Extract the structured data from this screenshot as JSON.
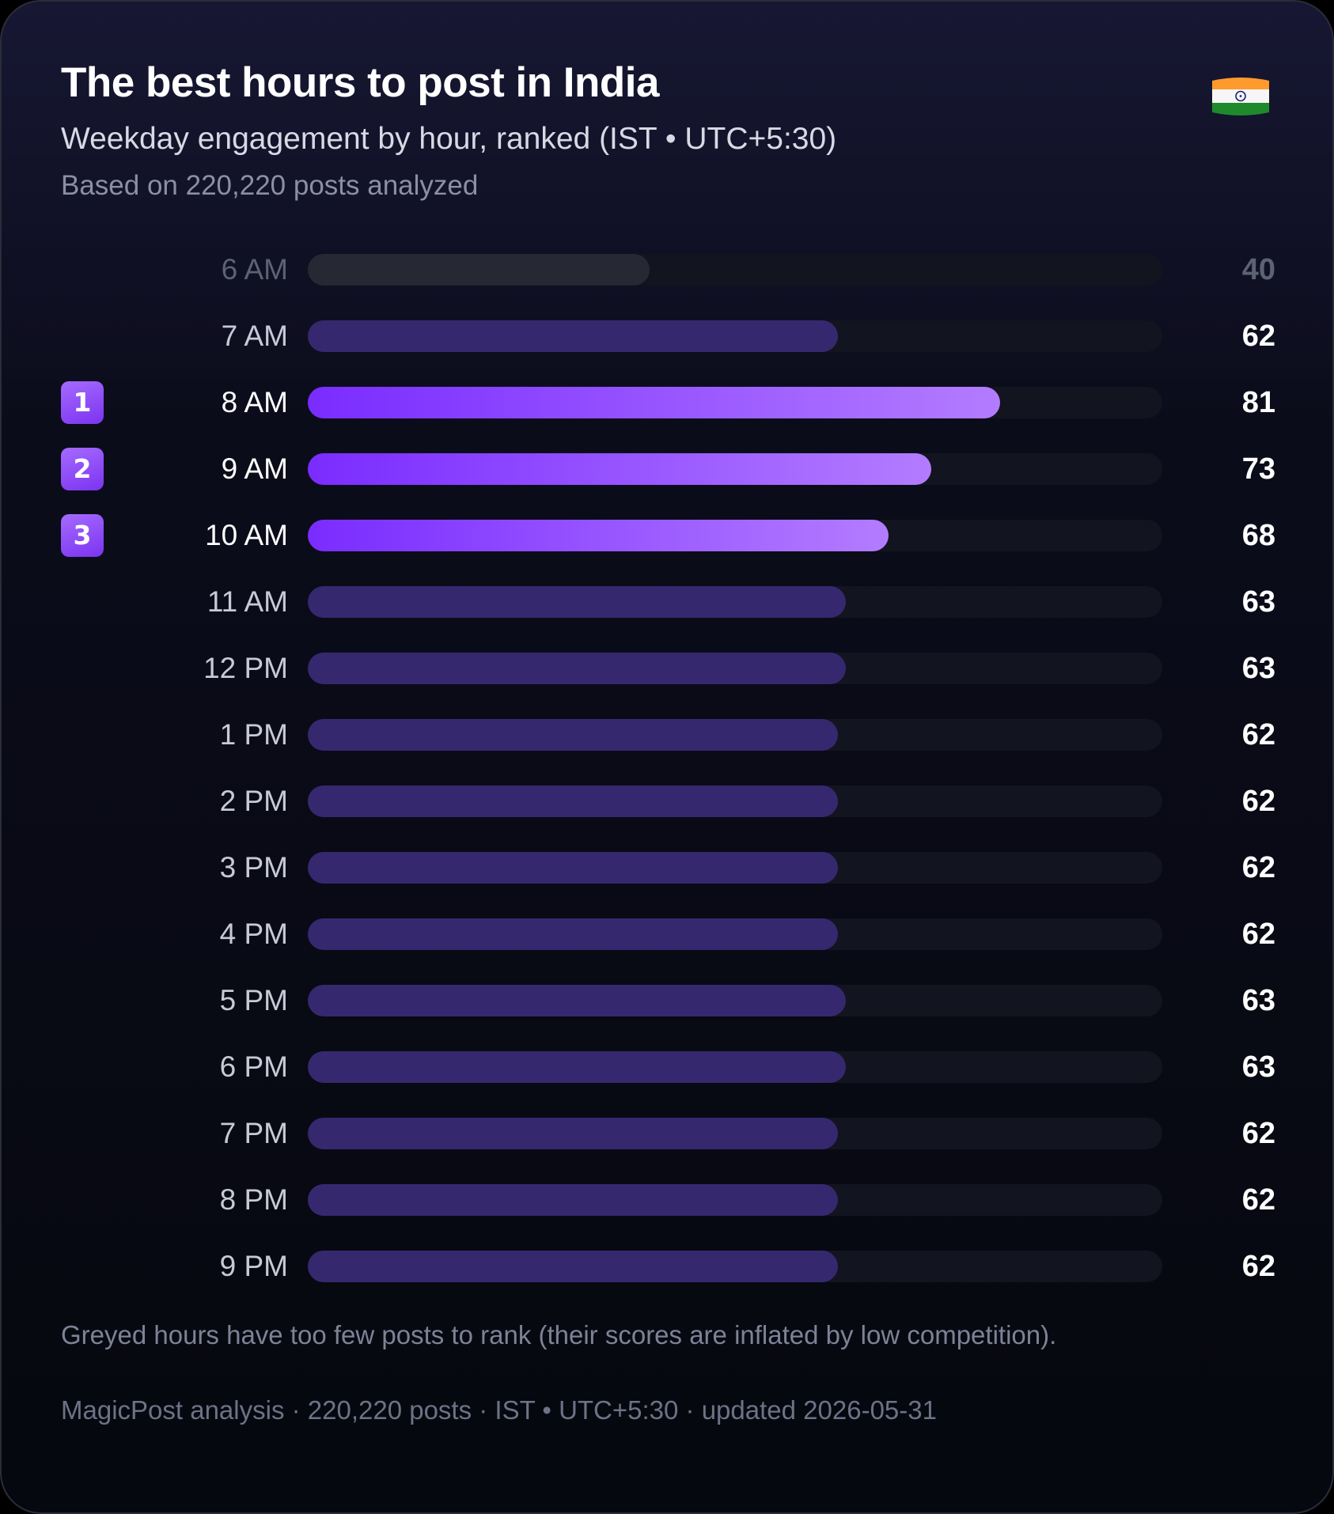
{
  "header": {
    "title": "The best hours to post in India",
    "subtitle": "Weekday engagement by hour, ranked (IST • UTC+5:30)",
    "based_on": "Based on 220,220 posts analyzed",
    "flag_icon": "india-flag-icon"
  },
  "colors": {
    "top_gradient_start": "#7a2cff",
    "top_gradient_end": "#b37cff",
    "regular_bar": "#36286f",
    "greyed_bar": "#262833",
    "track": "#12141f"
  },
  "chart_data": {
    "type": "bar",
    "orientation": "horizontal",
    "title": "The best hours to post in India",
    "xlim": [
      0,
      100
    ],
    "categories": [
      "6 AM",
      "7 AM",
      "8 AM",
      "9 AM",
      "10 AM",
      "11 AM",
      "12 PM",
      "1 PM",
      "2 PM",
      "3 PM",
      "4 PM",
      "5 PM",
      "6 PM",
      "7 PM",
      "8 PM",
      "9 PM"
    ],
    "values": [
      40,
      62,
      81,
      73,
      68,
      63,
      63,
      62,
      62,
      62,
      62,
      63,
      63,
      62,
      62,
      62
    ],
    "ranks": [
      null,
      null,
      1,
      2,
      3,
      null,
      null,
      null,
      null,
      null,
      null,
      null,
      null,
      null,
      null,
      null
    ],
    "greyed": [
      true,
      false,
      false,
      false,
      false,
      false,
      false,
      false,
      false,
      false,
      false,
      false,
      false,
      false,
      false,
      false
    ],
    "grid": false,
    "legend": "none"
  },
  "footer": {
    "note": "Greyed hours have too few posts to rank (their scores are inflated by low competition).",
    "source": "MagicPost analysis · 220,220 posts · IST • UTC+5:30 · updated 2026-05-31"
  }
}
